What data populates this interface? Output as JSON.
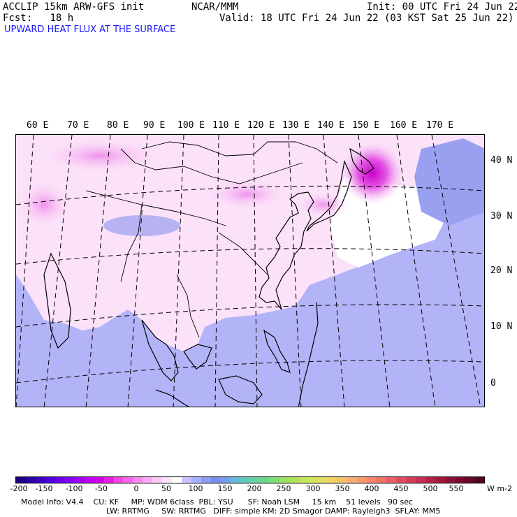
{
  "header": {
    "model": "ACCLIP 15km ARW-GFS init",
    "fcst_label": "Fcst:",
    "fcst_value": "18 h",
    "center": "NCAR/MMM",
    "init": "Init: 00 UTC Fri 24 Jun 22",
    "valid": "Valid: 18 UTC Fri 24 Jun 22 (03 KST Sat 25 Jun 22)",
    "field": "UPWARD HEAT FLUX AT THE SURFACE"
  },
  "map": {
    "lon_labels": [
      "60 E",
      "70 E",
      "80 E",
      "90 E",
      "100 E",
      "110 E",
      "120 E",
      "130 E",
      "140 E",
      "150 E",
      "160 E",
      "170 E"
    ],
    "lat_labels": [
      "40 N",
      "30 N",
      "20 N",
      "10 N",
      "0"
    ]
  },
  "colorbar": {
    "ticks": [
      "-200",
      "-150",
      "-100",
      "-50",
      "0",
      "50",
      "100",
      "150",
      "200",
      "250",
      "300",
      "350",
      "400",
      "450",
      "500",
      "550"
    ],
    "units": "W m-2",
    "colors": [
      "#1a0080",
      "#2a00a0",
      "#3c00c0",
      "#5200d8",
      "#6a00e8",
      "#8400f0",
      "#a000f0",
      "#bb00ee",
      "#d200e8",
      "#e41ee0",
      "#ee44e0",
      "#f268e6",
      "#f58aec",
      "#f8aaf2",
      "#fbc8f6",
      "#fde2fb",
      "#ffffff",
      "#c8c8ff",
      "#aab0ff",
      "#8c9cf8",
      "#7a8ef0",
      "#6fa0e8",
      "#66b8d8",
      "#60c8c0",
      "#64d2a4",
      "#6ed888",
      "#80de70",
      "#96e262",
      "#aee45c",
      "#c4e45a",
      "#d8e25a",
      "#e8dc5e",
      "#f2d066",
      "#f6c06c",
      "#f8ae70",
      "#f89a70",
      "#f6866c",
      "#f2726a",
      "#ea5e66",
      "#e04c60",
      "#d43c58",
      "#c42e50",
      "#b22248",
      "#a01840",
      "#8c1038",
      "#780a30",
      "#640828",
      "#540620"
    ]
  },
  "footer": {
    "line1": "Model Info: V4.4    CU: KF     MP: WDM 6class  PBL: YSU      SF: Noah LSM     15 km    51 levels   90 sec",
    "line2": "LW: RRTMG     SW: RRTMG   DIFF: simple KM: 2D Smagor DAMP: Rayleigh3  SFLAY: MM5"
  }
}
